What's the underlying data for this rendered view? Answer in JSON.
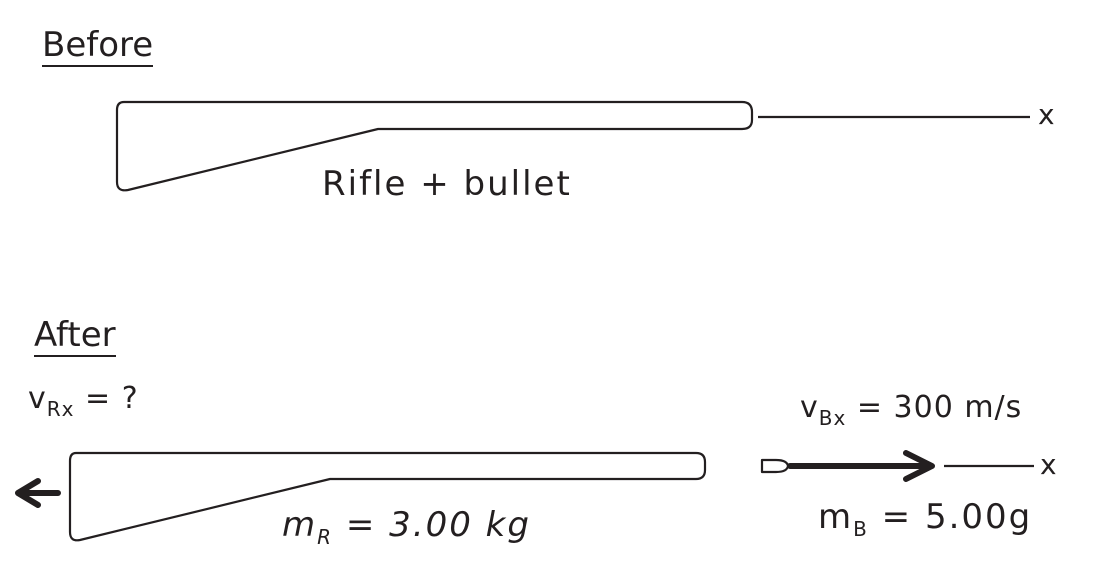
{
  "before": {
    "heading": "Before",
    "object_label": "Rifle + bullet",
    "axis_label": "x"
  },
  "after": {
    "heading": "After",
    "rifle_velocity": {
      "symbol": "v",
      "subscript": "Rx",
      "value": " = ?"
    },
    "bullet_velocity": {
      "symbol": "v",
      "subscript": "Bx",
      "value": " = 300 m/s"
    },
    "rifle_mass": {
      "symbol": "m",
      "subscript": "R",
      "value": " = 3.00 kg"
    },
    "bullet_mass": {
      "symbol": "m",
      "subscript": "B",
      "value": " = 5.00g"
    },
    "axis_label": "x"
  },
  "colors": {
    "ink": "#231f20",
    "background": "#ffffff"
  }
}
